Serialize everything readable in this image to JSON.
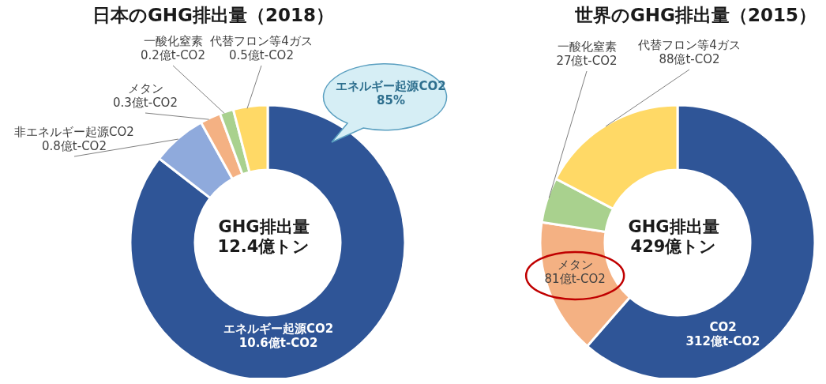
{
  "chart_data": [
    {
      "type": "donut",
      "title": "日本のGHG排出量（2018）",
      "categories": [
        "エネルギー起源CO2",
        "非エネルギー起源CO2",
        "メタン",
        "一酸化窒素",
        "代替フロン等4ガス"
      ],
      "values": [
        10.6,
        0.8,
        0.3,
        0.2,
        0.5
      ],
      "colors": [
        "#2f5597",
        "#8faadc",
        "#f4b183",
        "#a9d18e",
        "#ffd966"
      ],
      "value_labels": [
        "10.6億t-CO2",
        "0.8億t-CO2",
        "0.3億t-CO2",
        "0.2億t-CO2",
        "0.5億t-CO2"
      ],
      "annotations": [
        "GHG排出量\n12.4億トン",
        "エネルギー起源CO2\n85%"
      ]
    },
    {
      "type": "donut",
      "title": "世界のGHG排出量（2015）",
      "categories": [
        "CO2",
        "メタン",
        "一酸化窒素",
        "代替フロン等4ガス"
      ],
      "values": [
        312,
        81,
        27,
        88
      ],
      "colors": [
        "#2f5597",
        "#f4b183",
        "#a9d18e",
        "#ffd966"
      ],
      "value_labels": [
        "312億t-CO2",
        "81億t-CO2",
        "27億t-CO2",
        "88億t-CO2"
      ],
      "annotations": [
        "GHG排出量\n429億トン"
      ]
    }
  ]
}
